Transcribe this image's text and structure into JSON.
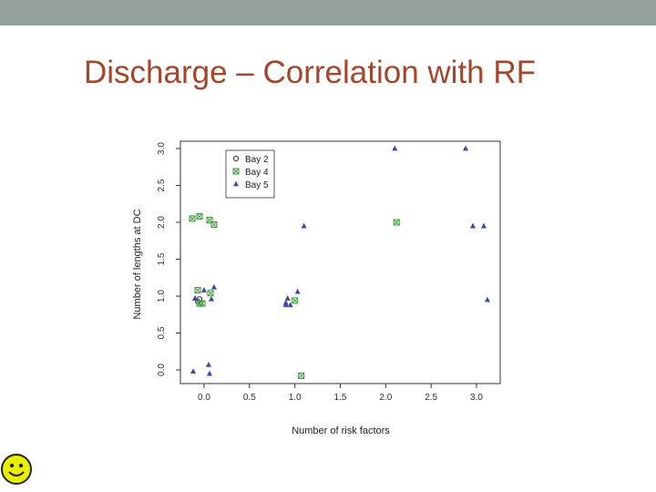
{
  "slide": {
    "title": "Discharge – Correlation with RF",
    "icons": {
      "corner_icon": "smiley-face-icon"
    },
    "colors": {
      "title": "#a2472b",
      "topbar": "#94a19a",
      "smiley_fill": "#e8f000"
    }
  },
  "chart_data": {
    "type": "scatter",
    "title": "",
    "xlabel": "Number of risk factors",
    "ylabel": "Number of lengths at DC",
    "xlim": [
      -0.2,
      3.2
    ],
    "ylim": [
      -0.1,
      3.05
    ],
    "xticks": [
      "0.0",
      "0.5",
      "1.0",
      "1.5",
      "2.0",
      "2.5",
      "3.0"
    ],
    "yticks": [
      "0.0",
      "0.5",
      "1.0",
      "1.5",
      "2.0",
      "2.5",
      "3.0"
    ],
    "grid": false,
    "legend_position": "top-left",
    "series": [
      {
        "name": "Bay 2",
        "marker": "circle",
        "color": "#333333",
        "points": [
          [
            -0.07,
            0.93
          ],
          [
            -0.05,
            0.96
          ]
        ]
      },
      {
        "name": "Bay 4",
        "marker": "boxed-x",
        "color": "#3a9a3a",
        "points": [
          [
            -0.13,
            2.05
          ],
          [
            -0.05,
            2.08
          ],
          [
            0.06,
            2.03
          ],
          [
            0.11,
            1.97
          ],
          [
            -0.07,
            1.08
          ],
          [
            0.07,
            1.04
          ],
          [
            -0.05,
            0.9
          ],
          [
            -0.02,
            0.9
          ],
          [
            1.0,
            0.94
          ],
          [
            2.12,
            2.0
          ],
          [
            1.07,
            -0.08
          ]
        ]
      },
      {
        "name": "Bay 5",
        "marker": "triangle",
        "color": "#3b4aa0",
        "points": [
          [
            2.1,
            3.0
          ],
          [
            2.88,
            3.0
          ],
          [
            0.92,
            0.97
          ],
          [
            0.9,
            0.91
          ],
          [
            0.95,
            0.88
          ],
          [
            0.9,
            0.88
          ],
          [
            1.03,
            1.06
          ],
          [
            1.1,
            1.95
          ],
          [
            2.96,
            1.95
          ],
          [
            3.08,
            1.95
          ],
          [
            3.12,
            0.95
          ],
          [
            -0.1,
            0.97
          ],
          [
            0.0,
            1.08
          ],
          [
            0.11,
            1.12
          ],
          [
            0.08,
            0.96
          ],
          [
            -0.12,
            -0.02
          ],
          [
            0.05,
            0.07
          ],
          [
            0.06,
            -0.05
          ]
        ]
      }
    ]
  }
}
